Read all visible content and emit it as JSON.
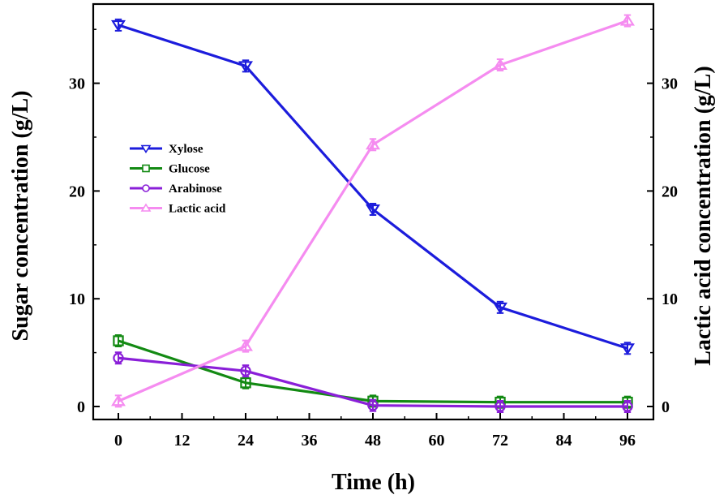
{
  "chart_data": {
    "type": "line",
    "x": [
      0,
      24,
      48,
      72,
      96
    ],
    "xlabel": "Time (h)",
    "ylabel_left": "Sugar concentration (g/L)",
    "ylabel_right": "Lactic acid concentration (g/L)",
    "xlim": [
      -4,
      100
    ],
    "ylim_left": [
      -1,
      36.5
    ],
    "ylim_right": [
      -1,
      36.5
    ],
    "x_ticks": [
      0,
      12,
      24,
      36,
      48,
      60,
      72,
      84,
      96
    ],
    "y_ticks_left": [
      0,
      10,
      20,
      30
    ],
    "y_ticks_right": [
      0,
      10,
      20,
      30
    ],
    "x_tick_labels": [
      "0",
      "12",
      "24",
      "36",
      "48",
      "60",
      "72",
      "84",
      "96"
    ],
    "y_tick_labels_left": [
      "0",
      "10",
      "20",
      "30"
    ],
    "y_tick_labels_right": [
      "0",
      "10",
      "20",
      "30"
    ],
    "legend_position": "upper-left",
    "series": [
      {
        "name": "Xylose",
        "axis": "left",
        "values": [
          35.4,
          31.6,
          18.3,
          9.2,
          5.4
        ],
        "color": "#1c1cdc",
        "marker": "triangle-down"
      },
      {
        "name": "Glucose",
        "axis": "left",
        "values": [
          6.1,
          2.2,
          0.5,
          0.4,
          0.4
        ],
        "color": "#138a13",
        "marker": "square"
      },
      {
        "name": "Arabinose",
        "axis": "left",
        "values": [
          4.5,
          3.3,
          0.1,
          0.0,
          0.0
        ],
        "color": "#8a1fd8",
        "marker": "circle"
      },
      {
        "name": "Lactic acid",
        "axis": "right",
        "values": [
          0.5,
          5.6,
          24.3,
          31.7,
          35.8
        ],
        "color": "#f58cf0",
        "marker": "triangle-up"
      }
    ]
  }
}
